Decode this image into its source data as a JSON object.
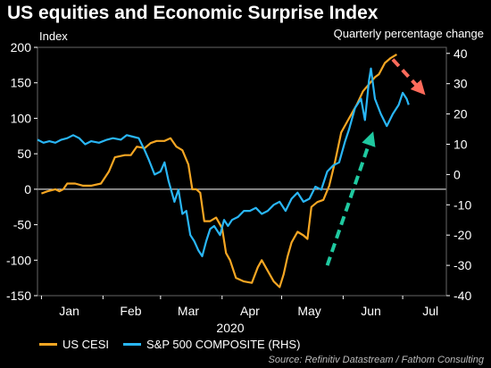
{
  "title": "US equities and Economic Surprise Index",
  "left_unit": "Index",
  "right_unit": "Quarterly percentage change",
  "year_label": "2020",
  "source": "Source: Refinitiv Datastream / Fathom Consulting",
  "colors": {
    "background": "#000000",
    "cesi": "#f5a623",
    "sp500": "#29b6f6",
    "up_arrow": "#1fc9a0",
    "down_arrow": "#ff6b5b",
    "zero_line": "#ffffff"
  },
  "chart_data": {
    "type": "line",
    "xlabel": "2020",
    "x_ticks": [
      "Jan",
      "Feb",
      "Mar",
      "Apr",
      "May",
      "Jun",
      "Jul"
    ],
    "x_range": [
      "2019-12-30",
      "2020-07-23"
    ],
    "left_axis": {
      "label": "Index",
      "range": [
        -150,
        200
      ],
      "ticks": [
        -150,
        -100,
        -50,
        0,
        50,
        100,
        150,
        200
      ]
    },
    "right_axis": {
      "label": "Quarterly percentage change",
      "range": [
        -40,
        42
      ],
      "ticks": [
        -40,
        -30,
        -20,
        -10,
        0,
        10,
        20,
        30,
        40
      ]
    },
    "legend": {
      "position": "bottom"
    },
    "annotations": [
      {
        "type": "arrow",
        "style": "dashed",
        "color": "#1fc9a0",
        "from": [
          "2020-05-24",
          -30
        ],
        "to": [
          "2020-06-15",
          12
        ],
        "axis": "right"
      },
      {
        "type": "arrow",
        "style": "dashed",
        "color": "#ff6b5b",
        "from": [
          "2020-06-26",
          38
        ],
        "to": [
          "2020-07-10",
          28
        ],
        "axis": "right"
      }
    ],
    "series": [
      {
        "name": "US CESI",
        "axis": "left",
        "color": "#f5a623",
        "points": [
          [
            "2020-01-01",
            -6
          ],
          [
            "2020-01-04",
            -3
          ],
          [
            "2020-01-08",
            0
          ],
          [
            "2020-01-10",
            -3
          ],
          [
            "2020-01-12",
            0
          ],
          [
            "2020-01-14",
            8
          ],
          [
            "2020-01-18",
            8
          ],
          [
            "2020-01-22",
            5
          ],
          [
            "2020-01-26",
            5
          ],
          [
            "2020-01-31",
            8
          ],
          [
            "2020-02-04",
            25
          ],
          [
            "2020-02-07",
            45
          ],
          [
            "2020-02-12",
            48
          ],
          [
            "2020-02-15",
            48
          ],
          [
            "2020-02-18",
            60
          ],
          [
            "2020-02-22",
            58
          ],
          [
            "2020-02-25",
            65
          ],
          [
            "2020-02-28",
            68
          ],
          [
            "2020-03-03",
            68
          ],
          [
            "2020-03-06",
            72
          ],
          [
            "2020-03-09",
            60
          ],
          [
            "2020-03-12",
            55
          ],
          [
            "2020-03-15",
            35
          ],
          [
            "2020-03-17",
            0
          ],
          [
            "2020-03-19",
            0
          ],
          [
            "2020-03-21",
            -5
          ],
          [
            "2020-03-23",
            -45
          ],
          [
            "2020-03-26",
            -45
          ],
          [
            "2020-03-29",
            -40
          ],
          [
            "2020-04-01",
            -55
          ],
          [
            "2020-04-03",
            -90
          ],
          [
            "2020-04-05",
            -100
          ],
          [
            "2020-04-08",
            -125
          ],
          [
            "2020-04-12",
            -130
          ],
          [
            "2020-04-16",
            -132
          ],
          [
            "2020-04-19",
            -110
          ],
          [
            "2020-04-21",
            -100
          ],
          [
            "2020-04-24",
            -115
          ],
          [
            "2020-04-27",
            -130
          ],
          [
            "2020-04-30",
            -138
          ],
          [
            "2020-05-02",
            -120
          ],
          [
            "2020-05-04",
            -95
          ],
          [
            "2020-05-06",
            -75
          ],
          [
            "2020-05-09",
            -60
          ],
          [
            "2020-05-12",
            -65
          ],
          [
            "2020-05-14",
            -70
          ],
          [
            "2020-05-16",
            -25
          ],
          [
            "2020-05-19",
            -18
          ],
          [
            "2020-05-22",
            -15
          ],
          [
            "2020-05-25",
            5
          ],
          [
            "2020-05-28",
            40
          ],
          [
            "2020-05-31",
            80
          ],
          [
            "2020-06-03",
            95
          ],
          [
            "2020-06-06",
            110
          ],
          [
            "2020-06-08",
            120
          ],
          [
            "2020-06-11",
            138
          ],
          [
            "2020-06-14",
            148
          ],
          [
            "2020-06-17",
            158
          ],
          [
            "2020-06-19",
            162
          ],
          [
            "2020-06-22",
            178
          ],
          [
            "2020-06-25",
            185
          ],
          [
            "2020-06-28",
            190
          ]
        ]
      },
      {
        "name": "S&P 500 COMPOSITE (RHS)",
        "axis": "right",
        "color": "#29b6f6",
        "points": [
          [
            "2019-12-30",
            11.5
          ],
          [
            "2020-01-02",
            10.5
          ],
          [
            "2020-01-05",
            11
          ],
          [
            "2020-01-08",
            10.5
          ],
          [
            "2020-01-11",
            11.5
          ],
          [
            "2020-01-14",
            12
          ],
          [
            "2020-01-17",
            13
          ],
          [
            "2020-01-20",
            12
          ],
          [
            "2020-01-23",
            10
          ],
          [
            "2020-01-26",
            11
          ],
          [
            "2020-01-30",
            10.5
          ],
          [
            "2020-02-03",
            11.5
          ],
          [
            "2020-02-06",
            12
          ],
          [
            "2020-02-10",
            11.5
          ],
          [
            "2020-02-13",
            13
          ],
          [
            "2020-02-16",
            12.5
          ],
          [
            "2020-02-19",
            12
          ],
          [
            "2020-02-22",
            8
          ],
          [
            "2020-02-24",
            5
          ],
          [
            "2020-02-27",
            0
          ],
          [
            "2020-03-01",
            1
          ],
          [
            "2020-03-03",
            4
          ],
          [
            "2020-03-05",
            -2
          ],
          [
            "2020-03-08",
            -9
          ],
          [
            "2020-03-10",
            -5
          ],
          [
            "2020-03-12",
            -13
          ],
          [
            "2020-03-14",
            -12
          ],
          [
            "2020-03-16",
            -20
          ],
          [
            "2020-03-18",
            -22
          ],
          [
            "2020-03-20",
            -25
          ],
          [
            "2020-03-22",
            -27
          ],
          [
            "2020-03-24",
            -22
          ],
          [
            "2020-03-26",
            -18
          ],
          [
            "2020-03-28",
            -17
          ],
          [
            "2020-03-31",
            -20
          ],
          [
            "2020-04-02",
            -15
          ],
          [
            "2020-04-04",
            -17
          ],
          [
            "2020-04-06",
            -15
          ],
          [
            "2020-04-09",
            -14
          ],
          [
            "2020-04-12",
            -12
          ],
          [
            "2020-04-15",
            -12
          ],
          [
            "2020-04-18",
            -11
          ],
          [
            "2020-04-21",
            -13
          ],
          [
            "2020-04-24",
            -12
          ],
          [
            "2020-04-27",
            -10
          ],
          [
            "2020-04-30",
            -9
          ],
          [
            "2020-05-03",
            -12
          ],
          [
            "2020-05-06",
            -8
          ],
          [
            "2020-05-09",
            -6
          ],
          [
            "2020-05-12",
            -9
          ],
          [
            "2020-05-15",
            -8
          ],
          [
            "2020-05-18",
            -4
          ],
          [
            "2020-05-21",
            -5
          ],
          [
            "2020-05-24",
            1
          ],
          [
            "2020-05-27",
            3
          ],
          [
            "2020-05-30",
            4
          ],
          [
            "2020-06-02",
            11
          ],
          [
            "2020-06-04",
            15
          ],
          [
            "2020-06-07",
            22
          ],
          [
            "2020-06-10",
            25
          ],
          [
            "2020-06-12",
            18
          ],
          [
            "2020-06-14",
            31
          ],
          [
            "2020-06-15",
            35
          ],
          [
            "2020-06-17",
            25
          ],
          [
            "2020-06-20",
            20
          ],
          [
            "2020-06-23",
            16
          ],
          [
            "2020-06-26",
            20
          ],
          [
            "2020-06-29",
            23
          ],
          [
            "2020-07-01",
            27
          ],
          [
            "2020-07-03",
            25
          ],
          [
            "2020-07-04",
            23
          ]
        ]
      }
    ]
  }
}
